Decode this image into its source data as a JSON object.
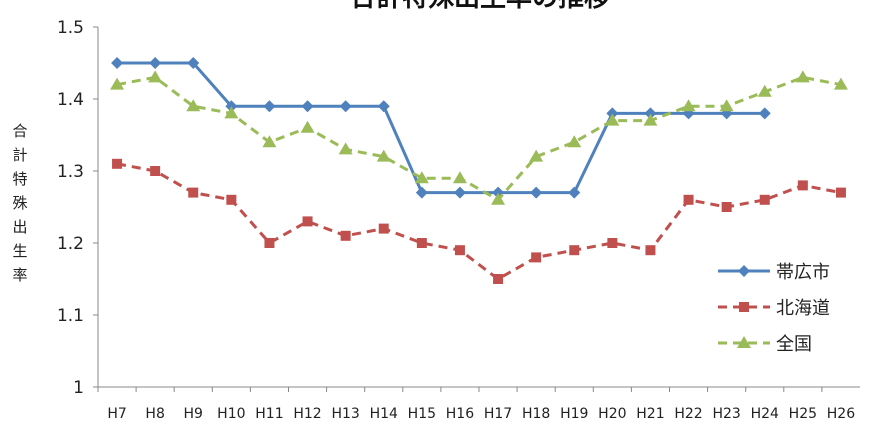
{
  "chart_data": {
    "type": "line",
    "title": "合計特殊出生率の推移",
    "xlabel": "",
    "ylabel": "合計特殊出生率",
    "categories": [
      "H7",
      "H8",
      "H9",
      "H10",
      "H11",
      "H12",
      "H13",
      "H14",
      "H15",
      "H16",
      "H17",
      "H18",
      "H19",
      "H20",
      "H21",
      "H22",
      "H23",
      "H24",
      "H25",
      "H26"
    ],
    "ylim": [
      1,
      1.5
    ],
    "yticks": [
      "1",
      "1.1",
      "1.2",
      "1.3",
      "1.4",
      "1.5"
    ],
    "grid": false,
    "legend_position": "right",
    "series": [
      {
        "name": "帯広市",
        "color": "#4f81bd",
        "marker": "diamond",
        "dash": "solid",
        "values": [
          1.45,
          1.45,
          1.45,
          1.39,
          1.39,
          1.39,
          1.39,
          1.39,
          1.27,
          1.27,
          1.27,
          1.27,
          1.27,
          1.38,
          1.38,
          1.38,
          1.38,
          1.38,
          null,
          null
        ]
      },
      {
        "name": "北海道",
        "color": "#c0504d",
        "marker": "square",
        "dash": "dashed",
        "values": [
          1.31,
          1.3,
          1.27,
          1.26,
          1.2,
          1.23,
          1.21,
          1.22,
          1.2,
          1.19,
          1.15,
          1.18,
          1.19,
          1.2,
          1.19,
          1.26,
          1.25,
          1.26,
          1.28,
          1.27
        ]
      },
      {
        "name": "全国",
        "color": "#9bbb59",
        "marker": "triangle",
        "dash": "dashed",
        "values": [
          1.42,
          1.43,
          1.39,
          1.38,
          1.34,
          1.36,
          1.33,
          1.32,
          1.29,
          1.29,
          1.26,
          1.32,
          1.34,
          1.37,
          1.37,
          1.39,
          1.39,
          1.41,
          1.43,
          1.42
        ]
      }
    ]
  }
}
